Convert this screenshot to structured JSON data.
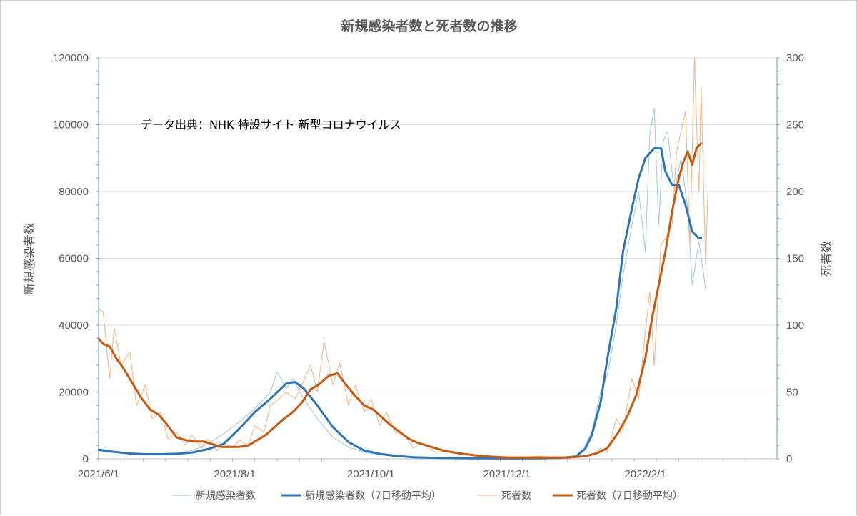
{
  "chart_data": {
    "type": "line",
    "title": "新規感染者数と死者数の推移",
    "annotation": "データ出典：NHK 特設サイト 新型コロナウイルス",
    "ylabel_left": "新規感染者数",
    "ylabel_right": "死者数",
    "ylim_left": [
      0,
      120000
    ],
    "ylim_right": [
      0,
      300
    ],
    "yticks_left": [
      "0",
      "20000",
      "40000",
      "60000",
      "80000",
      "100000",
      "120000"
    ],
    "yticks_right": [
      "0",
      "50",
      "100",
      "150",
      "200",
      "250",
      "300"
    ],
    "xlim": [
      "2021-06-01",
      "2022-04-01"
    ],
    "xticks": [
      {
        "date": "2021-06-01",
        "label": "2021/6/1"
      },
      {
        "date": "2021-08-01",
        "label": "2021/8/1"
      },
      {
        "date": "2021-10-01",
        "label": "2021/10/1"
      },
      {
        "date": "2021-12-01",
        "label": "2021/12/1"
      },
      {
        "date": "2022-02-01",
        "label": "2022/2/1"
      }
    ],
    "grid": true,
    "legend_position": "bottom",
    "colors": {
      "cases": "#2E75B6",
      "cases_daily": "#9DC3E6",
      "deaths": "#C55A11",
      "deaths_daily": "#F4B183",
      "grid": "#D9D9D9",
      "axis": "#5B9BD5",
      "text": "#595959"
    },
    "series": [
      {
        "name": "新規感染者数",
        "axis": "left",
        "style": "thin",
        "color": "#9DC3E6",
        "points": [
          [
            "2021-06-01",
            3000
          ],
          [
            "2021-06-08",
            2300
          ],
          [
            "2021-06-15",
            1700
          ],
          [
            "2021-06-22",
            1400
          ],
          [
            "2021-06-29",
            1600
          ],
          [
            "2021-07-06",
            1800
          ],
          [
            "2021-07-13",
            2500
          ],
          [
            "2021-07-20",
            4500
          ],
          [
            "2021-07-27",
            7500
          ],
          [
            "2021-08-03",
            11000
          ],
          [
            "2021-08-10",
            15000
          ],
          [
            "2021-08-17",
            20000
          ],
          [
            "2021-08-20",
            26000
          ],
          [
            "2021-08-24",
            21000
          ],
          [
            "2021-08-27",
            24000
          ],
          [
            "2021-08-31",
            19000
          ],
          [
            "2021-09-07",
            12000
          ],
          [
            "2021-09-14",
            6500
          ],
          [
            "2021-09-21",
            3500
          ],
          [
            "2021-09-28",
            2000
          ],
          [
            "2021-10-05",
            1200
          ],
          [
            "2021-10-12",
            700
          ],
          [
            "2021-10-20",
            400
          ],
          [
            "2021-11-01",
            250
          ],
          [
            "2021-11-15",
            150
          ],
          [
            "2021-12-01",
            120
          ],
          [
            "2021-12-15",
            180
          ],
          [
            "2021-12-25",
            400
          ],
          [
            "2022-01-01",
            1000
          ],
          [
            "2022-01-05",
            4000
          ],
          [
            "2022-01-08",
            8000
          ],
          [
            "2022-01-12",
            20000
          ],
          [
            "2022-01-15",
            25000
          ],
          [
            "2022-01-19",
            40000
          ],
          [
            "2022-01-22",
            55000
          ],
          [
            "2022-01-26",
            70000
          ],
          [
            "2022-01-29",
            80000
          ],
          [
            "2022-02-01",
            62000
          ],
          [
            "2022-02-03",
            97000
          ],
          [
            "2022-02-05",
            105000
          ],
          [
            "2022-02-07",
            70000
          ],
          [
            "2022-02-09",
            95000
          ],
          [
            "2022-02-11",
            98000
          ],
          [
            "2022-02-14",
            80000
          ],
          [
            "2022-02-17",
            90000
          ],
          [
            "2022-02-20",
            75000
          ],
          [
            "2022-02-22",
            52000
          ],
          [
            "2022-02-25",
            65000
          ],
          [
            "2022-02-28",
            51000
          ]
        ]
      },
      {
        "name": "新規感染者数（7日移動平均）",
        "axis": "left",
        "style": "thick",
        "color": "#2E75B6",
        "points": [
          [
            "2021-06-01",
            2700
          ],
          [
            "2021-06-08",
            2100
          ],
          [
            "2021-06-15",
            1600
          ],
          [
            "2021-06-22",
            1400
          ],
          [
            "2021-06-29",
            1400
          ],
          [
            "2021-07-06",
            1500
          ],
          [
            "2021-07-13",
            1900
          ],
          [
            "2021-07-20",
            2900
          ],
          [
            "2021-07-27",
            4500
          ],
          [
            "2021-08-03",
            9000
          ],
          [
            "2021-08-10",
            14000
          ],
          [
            "2021-08-17",
            18000
          ],
          [
            "2021-08-24",
            22500
          ],
          [
            "2021-08-28",
            23000
          ],
          [
            "2021-09-01",
            21000
          ],
          [
            "2021-09-07",
            16000
          ],
          [
            "2021-09-14",
            9500
          ],
          [
            "2021-09-21",
            5000
          ],
          [
            "2021-09-28",
            2500
          ],
          [
            "2021-10-05",
            1500
          ],
          [
            "2021-10-12",
            900
          ],
          [
            "2021-10-20",
            500
          ],
          [
            "2021-11-01",
            250
          ],
          [
            "2021-11-15",
            150
          ],
          [
            "2021-12-01",
            120
          ],
          [
            "2021-12-15",
            150
          ],
          [
            "2021-12-25",
            300
          ],
          [
            "2022-01-01",
            700
          ],
          [
            "2022-01-05",
            3000
          ],
          [
            "2022-01-08",
            7000
          ],
          [
            "2022-01-12",
            17000
          ],
          [
            "2022-01-15",
            30000
          ],
          [
            "2022-01-19",
            45000
          ],
          [
            "2022-01-22",
            62000
          ],
          [
            "2022-01-26",
            75000
          ],
          [
            "2022-01-29",
            84000
          ],
          [
            "2022-02-01",
            90000
          ],
          [
            "2022-02-05",
            93000
          ],
          [
            "2022-02-08",
            93000
          ],
          [
            "2022-02-10",
            86000
          ],
          [
            "2022-02-13",
            82000
          ],
          [
            "2022-02-16",
            82000
          ],
          [
            "2022-02-19",
            76000
          ],
          [
            "2022-02-22",
            68000
          ],
          [
            "2022-02-25",
            66000
          ],
          [
            "2022-02-26",
            66000
          ]
        ]
      },
      {
        "name": "死者数",
        "axis": "right",
        "style": "thin",
        "color": "#F4B183",
        "points": [
          [
            "2021-06-01",
            112
          ],
          [
            "2021-06-03",
            110
          ],
          [
            "2021-06-06",
            60
          ],
          [
            "2021-06-08",
            98
          ],
          [
            "2021-06-11",
            70
          ],
          [
            "2021-06-15",
            80
          ],
          [
            "2021-06-18",
            40
          ],
          [
            "2021-06-22",
            55
          ],
          [
            "2021-06-25",
            30
          ],
          [
            "2021-06-29",
            35
          ],
          [
            "2021-07-02",
            15
          ],
          [
            "2021-07-06",
            20
          ],
          [
            "2021-07-10",
            10
          ],
          [
            "2021-07-13",
            18
          ],
          [
            "2021-07-17",
            8
          ],
          [
            "2021-07-20",
            15
          ],
          [
            "2021-07-24",
            6
          ],
          [
            "2021-07-27",
            12
          ],
          [
            "2021-07-31",
            8
          ],
          [
            "2021-08-03",
            14
          ],
          [
            "2021-08-07",
            10
          ],
          [
            "2021-08-10",
            25
          ],
          [
            "2021-08-14",
            20
          ],
          [
            "2021-08-17",
            40
          ],
          [
            "2021-08-21",
            45
          ],
          [
            "2021-08-24",
            50
          ],
          [
            "2021-08-28",
            45
          ],
          [
            "2021-08-31",
            55
          ],
          [
            "2021-09-04",
            70
          ],
          [
            "2021-09-07",
            50
          ],
          [
            "2021-09-10",
            88
          ],
          [
            "2021-09-14",
            55
          ],
          [
            "2021-09-17",
            72
          ],
          [
            "2021-09-21",
            40
          ],
          [
            "2021-09-24",
            55
          ],
          [
            "2021-09-28",
            35
          ],
          [
            "2021-10-01",
            45
          ],
          [
            "2021-10-05",
            25
          ],
          [
            "2021-10-08",
            35
          ],
          [
            "2021-10-12",
            20
          ],
          [
            "2021-10-16",
            18
          ],
          [
            "2021-10-20",
            8
          ],
          [
            "2021-10-24",
            12
          ],
          [
            "2021-10-30",
            5
          ],
          [
            "2021-11-05",
            6
          ],
          [
            "2021-11-15",
            3
          ],
          [
            "2021-11-25",
            2
          ],
          [
            "2021-12-05",
            1
          ],
          [
            "2021-12-15",
            2
          ],
          [
            "2021-12-25",
            1
          ],
          [
            "2022-01-01",
            2
          ],
          [
            "2022-01-08",
            3
          ],
          [
            "2022-01-12",
            8
          ],
          [
            "2022-01-15",
            5
          ],
          [
            "2022-01-19",
            30
          ],
          [
            "2022-01-22",
            22
          ],
          [
            "2022-01-26",
            60
          ],
          [
            "2022-01-29",
            45
          ],
          [
            "2022-02-01",
            95
          ],
          [
            "2022-02-03",
            125
          ],
          [
            "2022-02-05",
            70
          ],
          [
            "2022-02-08",
            160
          ],
          [
            "2022-02-10",
            165
          ],
          [
            "2022-02-13",
            175
          ],
          [
            "2022-02-15",
            230
          ],
          [
            "2022-02-17",
            245
          ],
          [
            "2022-02-19",
            260
          ],
          [
            "2022-02-21",
            160
          ],
          [
            "2022-02-23",
            300
          ],
          [
            "2022-02-25",
            200
          ],
          [
            "2022-02-26",
            278
          ],
          [
            "2022-02-28",
            145
          ],
          [
            "2022-03-01",
            198
          ]
        ]
      },
      {
        "name": "死者数（7日移動平均）",
        "axis": "right",
        "style": "thick",
        "color": "#C55A11",
        "points": [
          [
            "2021-06-01",
            90
          ],
          [
            "2021-06-03",
            86
          ],
          [
            "2021-06-06",
            84
          ],
          [
            "2021-06-09",
            75
          ],
          [
            "2021-06-12",
            68
          ],
          [
            "2021-06-16",
            57
          ],
          [
            "2021-06-20",
            46
          ],
          [
            "2021-06-24",
            37
          ],
          [
            "2021-06-28",
            33
          ],
          [
            "2021-07-02",
            25
          ],
          [
            "2021-07-06",
            16
          ],
          [
            "2021-07-10",
            14
          ],
          [
            "2021-07-14",
            13
          ],
          [
            "2021-07-18",
            13
          ],
          [
            "2021-07-22",
            11
          ],
          [
            "2021-07-26",
            9
          ],
          [
            "2021-07-30",
            9
          ],
          [
            "2021-08-03",
            9
          ],
          [
            "2021-08-07",
            10
          ],
          [
            "2021-08-11",
            14
          ],
          [
            "2021-08-15",
            18
          ],
          [
            "2021-08-19",
            24
          ],
          [
            "2021-08-23",
            30
          ],
          [
            "2021-08-27",
            35
          ],
          [
            "2021-08-31",
            42
          ],
          [
            "2021-09-04",
            52
          ],
          [
            "2021-09-08",
            56
          ],
          [
            "2021-09-12",
            62
          ],
          [
            "2021-09-16",
            64
          ],
          [
            "2021-09-20",
            55
          ],
          [
            "2021-09-24",
            47
          ],
          [
            "2021-09-28",
            40
          ],
          [
            "2021-10-02",
            37
          ],
          [
            "2021-10-06",
            31
          ],
          [
            "2021-10-10",
            25
          ],
          [
            "2021-10-14",
            20
          ],
          [
            "2021-10-18",
            15
          ],
          [
            "2021-10-22",
            12
          ],
          [
            "2021-10-28",
            9
          ],
          [
            "2021-11-03",
            6
          ],
          [
            "2021-11-10",
            4
          ],
          [
            "2021-11-20",
            2
          ],
          [
            "2021-12-01",
            1
          ],
          [
            "2021-12-15",
            1
          ],
          [
            "2021-12-28",
            1
          ],
          [
            "2022-01-05",
            2
          ],
          [
            "2022-01-10",
            4
          ],
          [
            "2022-01-15",
            8
          ],
          [
            "2022-01-20",
            20
          ],
          [
            "2022-01-24",
            32
          ],
          [
            "2022-01-28",
            48
          ],
          [
            "2022-02-01",
            75
          ],
          [
            "2022-02-04",
            105
          ],
          [
            "2022-02-07",
            130
          ],
          [
            "2022-02-10",
            155
          ],
          [
            "2022-02-13",
            185
          ],
          [
            "2022-02-16",
            210
          ],
          [
            "2022-02-18",
            222
          ],
          [
            "2022-02-20",
            230
          ],
          [
            "2022-02-22",
            220
          ],
          [
            "2022-02-24",
            233
          ],
          [
            "2022-02-26",
            236
          ]
        ]
      }
    ]
  }
}
